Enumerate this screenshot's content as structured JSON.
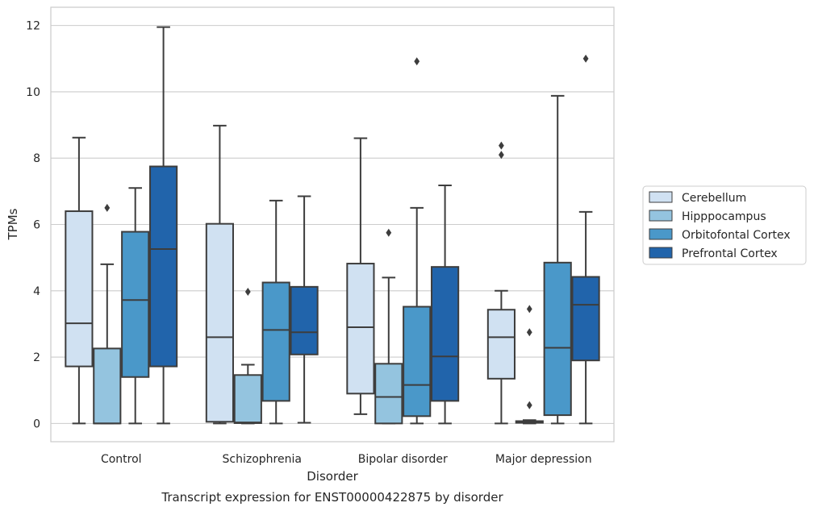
{
  "chart_data": {
    "type": "box",
    "caption": "Transcript expression for ENST00000422875 by disorder",
    "xlabel": "Disorder",
    "ylabel": "TPMs",
    "ylim": [
      -0.55,
      12.55
    ],
    "yticks": [
      0,
      2,
      4,
      6,
      8,
      10,
      12
    ],
    "grid": true,
    "legend_position": "right",
    "categories": [
      "Control",
      "Schizophrenia",
      "Bipolar disorder",
      "Major depression"
    ],
    "series": [
      {
        "name": "Cerebellum",
        "color": "#d0e1f2",
        "boxes": [
          {
            "min": 0,
            "q1": 1.72,
            "median": 3.02,
            "q3": 6.4,
            "max": 8.62,
            "outliers": []
          },
          {
            "min": 0,
            "q1": 0.05,
            "median": 2.6,
            "q3": 6.02,
            "max": 8.98,
            "outliers": []
          },
          {
            "min": 0.28,
            "q1": 0.9,
            "median": 2.9,
            "q3": 4.82,
            "max": 8.6,
            "outliers": []
          },
          {
            "min": 0,
            "q1": 1.35,
            "median": 2.6,
            "q3": 3.43,
            "max": 4.0,
            "outliers": [
              8.1,
              8.38
            ]
          }
        ]
      },
      {
        "name": "Hipppocampus",
        "color": "#94c4df",
        "boxes": [
          {
            "min": 0,
            "q1": 0,
            "median": 0,
            "q3": 2.26,
            "max": 4.8,
            "outliers": [
              6.5
            ]
          },
          {
            "min": 0,
            "q1": 0.01,
            "median": 0.03,
            "q3": 1.46,
            "max": 1.77,
            "outliers": [
              3.97
            ]
          },
          {
            "min": 0,
            "q1": 0,
            "median": 0.8,
            "q3": 1.8,
            "max": 4.4,
            "outliers": [
              5.75
            ]
          },
          {
            "min": 0,
            "q1": 0.02,
            "median": 0.04,
            "q3": 0.07,
            "max": 0.1,
            "outliers": [
              0.55,
              2.75,
              3.45
            ]
          }
        ]
      },
      {
        "name": "Orbitofontal Cortex",
        "color": "#4a98c9",
        "boxes": [
          {
            "min": 0,
            "q1": 1.4,
            "median": 3.72,
            "q3": 5.78,
            "max": 7.1,
            "outliers": []
          },
          {
            "min": 0,
            "q1": 0.68,
            "median": 2.82,
            "q3": 4.25,
            "max": 6.72,
            "outliers": []
          },
          {
            "min": 0,
            "q1": 0.22,
            "median": 1.16,
            "q3": 3.52,
            "max": 6.5,
            "outliers": [
              10.92
            ]
          },
          {
            "min": 0,
            "q1": 0.25,
            "median": 2.28,
            "q3": 4.85,
            "max": 9.88,
            "outliers": []
          }
        ]
      },
      {
        "name": "Prefrontal Cortex",
        "color": "#2164ab",
        "boxes": [
          {
            "min": 0,
            "q1": 1.72,
            "median": 5.26,
            "q3": 7.75,
            "max": 11.95,
            "outliers": []
          },
          {
            "min": 0.02,
            "q1": 2.08,
            "median": 2.75,
            "q3": 4.12,
            "max": 6.85,
            "outliers": []
          },
          {
            "min": 0,
            "q1": 0.68,
            "median": 2.02,
            "q3": 4.72,
            "max": 7.18,
            "outliers": []
          },
          {
            "min": 0,
            "q1": 1.9,
            "median": 3.58,
            "q3": 4.42,
            "max": 6.38,
            "outliers": [
              11.0
            ]
          }
        ]
      }
    ]
  }
}
